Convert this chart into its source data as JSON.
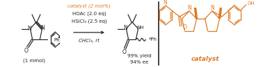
{
  "background_color": "#ffffff",
  "orange_color": "#E07820",
  "black_color": "#222222",
  "figsize": [
    3.78,
    0.97
  ],
  "dpi": 100,
  "catalyst_text1": "catalyst (2 mol%)",
  "catalyst_text2": "HOAc (2.0 eq)",
  "catalyst_text3": "HSiCl",
  "catalyst_text3b": "3",
  "catalyst_text3c": " (2.5 eq)",
  "catalyst_text4": "CHCl",
  "catalyst_text4b": "3",
  "catalyst_text4c": ", rt",
  "yield_text": "99% yield",
  "ee_text": "94% ee",
  "mmol_text": "(1 mmol)",
  "catalyst_label": "catalyst"
}
